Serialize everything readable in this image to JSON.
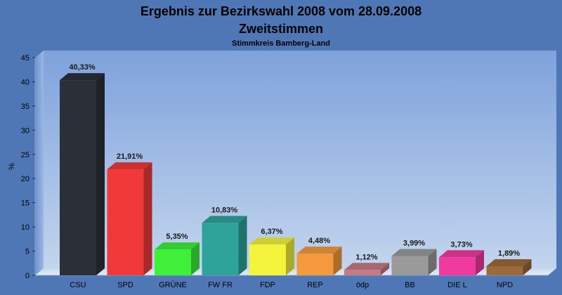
{
  "chart_data": {
    "type": "bar",
    "title": "Ergebnis zur Bezirkswahl 2008 vom 28.09.2008",
    "subtitle": "Zweitstimmen",
    "caption": "Stimmkreis Bamberg-Land",
    "ylabel": "%",
    "xlabel": "",
    "ylim": [
      0,
      45
    ],
    "yticks": [
      0,
      5,
      10,
      15,
      20,
      25,
      30,
      35,
      40,
      45
    ],
    "grid": false,
    "legend": "none",
    "categories": [
      "CSU",
      "SPD",
      "GRÜNE",
      "FW FR",
      "FDP",
      "REP",
      "ödp",
      "BB",
      "DIE L",
      "NPD"
    ],
    "values": [
      40.33,
      21.91,
      5.35,
      10.83,
      6.37,
      4.48,
      1.12,
      3.99,
      3.73,
      1.89
    ],
    "value_labels": [
      "40,33%",
      "21,91%",
      "5,35%",
      "10,83%",
      "6,37%",
      "4,48%",
      "1,12%",
      "3,99%",
      "3,73%",
      "1,89%"
    ],
    "colors": [
      "#2b2f38",
      "#f03a3a",
      "#3ef03a",
      "#2ea39a",
      "#f4f43c",
      "#f59a3c",
      "#c47c82",
      "#9a9a9a",
      "#f03aa0",
      "#9a6a3a"
    ],
    "background": "#4f77b6"
  }
}
